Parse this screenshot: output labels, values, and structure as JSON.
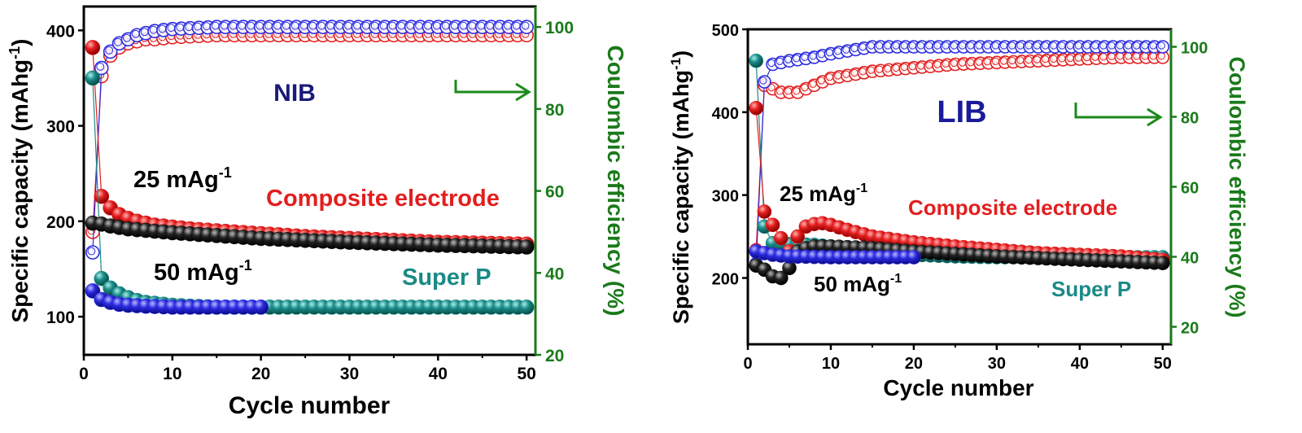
{
  "colors": {
    "axis": "#000000",
    "right_axis": "#1a7a1a",
    "composite": "#e31e1e",
    "superp": "#1a8a86",
    "black": "#111111",
    "blue": "#2a2ae0",
    "label_nib": "#1a1a7a",
    "label_lib": "#1a1a9a",
    "composite_label": "#e31e1e",
    "superp_label": "#1a8a86"
  },
  "chart_data": [
    {
      "id": "left",
      "type": "scatter",
      "xlabel": "Cycle number",
      "ylabel": "Specific capacity (mAhg",
      "ylabel_sup": "-1",
      "ylabel_end": ")",
      "y2label": "Coulombic efficiency (%)",
      "xlim": [
        0,
        51
      ],
      "ylim": [
        60,
        425
      ],
      "y2lim": [
        20,
        105
      ],
      "x_ticks": [
        0,
        10,
        20,
        30,
        40,
        50
      ],
      "y_ticks": [
        100,
        200,
        300,
        400
      ],
      "y2_ticks": [
        20,
        40,
        60,
        80,
        100
      ],
      "grid": false,
      "labels": {
        "system": "NIB",
        "rate_25": "25 mAg",
        "rate_50": "50 mAg",
        "rate_sup": "-1",
        "composite": "Composite electrode",
        "superp": "Super P"
      },
      "arrow": true,
      "series": [
        {
          "key": "composite_cap",
          "kind": "filled",
          "color": "composite",
          "axis": "left",
          "points": [
            [
              1,
              382
            ],
            [
              2,
              226
            ],
            [
              3,
              214
            ],
            [
              4,
              207
            ],
            [
              5,
              203
            ],
            [
              6,
              200
            ],
            [
              7,
              198
            ],
            [
              8,
              196
            ],
            [
              9,
              195
            ],
            [
              10,
              194
            ],
            [
              12,
              192
            ],
            [
              15,
              190
            ],
            [
              20,
              187
            ],
            [
              25,
              184
            ],
            [
              30,
              182
            ],
            [
              35,
              180
            ],
            [
              40,
              178
            ],
            [
              45,
              177
            ],
            [
              50,
              176
            ]
          ]
        },
        {
          "key": "composite_ce",
          "kind": "open",
          "color": "composite",
          "axis": "right",
          "points": [
            [
              1,
              50
            ],
            [
              2,
              88
            ],
            [
              3,
              93
            ],
            [
              4,
              95
            ],
            [
              5,
              96
            ],
            [
              6,
              96.5
            ],
            [
              7,
              97
            ],
            [
              8,
              97
            ],
            [
              10,
              97.5
            ],
            [
              15,
              98
            ],
            [
              20,
              98
            ],
            [
              30,
              98
            ],
            [
              40,
              98
            ],
            [
              50,
              98
            ]
          ]
        },
        {
          "key": "superp_cap",
          "kind": "filled",
          "color": "superp",
          "axis": "left",
          "points": [
            [
              1,
              350
            ],
            [
              2,
              140
            ],
            [
              3,
              130
            ],
            [
              4,
              124
            ],
            [
              5,
              120
            ],
            [
              6,
              117
            ],
            [
              7,
              115
            ],
            [
              8,
              114
            ],
            [
              9,
              113
            ],
            [
              10,
              112
            ],
            [
              12,
              111
            ],
            [
              15,
              110
            ],
            [
              20,
              110
            ],
            [
              30,
              110
            ],
            [
              40,
              110
            ],
            [
              50,
              110
            ]
          ]
        },
        {
          "key": "black_cap",
          "kind": "filled",
          "color": "black",
          "axis": "left",
          "points": [
            [
              1,
              198
            ],
            [
              2,
              197
            ],
            [
              3,
              195
            ],
            [
              5,
              192
            ],
            [
              10,
              188
            ],
            [
              15,
              185
            ],
            [
              20,
              182
            ],
            [
              30,
              178
            ],
            [
              40,
              175
            ],
            [
              50,
              173
            ]
          ]
        },
        {
          "key": "blue_cap",
          "kind": "filled",
          "color": "blue",
          "axis": "left",
          "points": [
            [
              1,
              127
            ],
            [
              2,
              118
            ],
            [
              3,
              115
            ],
            [
              4,
              113
            ],
            [
              5,
              112
            ],
            [
              7,
              111
            ],
            [
              10,
              110
            ],
            [
              15,
              110
            ],
            [
              20,
              110
            ]
          ]
        },
        {
          "key": "blue_ce",
          "kind": "open",
          "color": "blue",
          "axis": "right",
          "points": [
            [
              1,
              45
            ],
            [
              2,
              90
            ],
            [
              3,
              94
            ],
            [
              4,
              96
            ],
            [
              5,
              97
            ],
            [
              6,
              98
            ],
            [
              7,
              98.5
            ],
            [
              8,
              99
            ],
            [
              10,
              99.5
            ],
            [
              15,
              100
            ],
            [
              20,
              100
            ],
            [
              30,
              100
            ],
            [
              40,
              100
            ],
            [
              50,
              100
            ]
          ]
        }
      ]
    },
    {
      "id": "right",
      "type": "scatter",
      "xlabel": "Cycle number",
      "ylabel": "Specific capacity (mAhg",
      "ylabel_sup": "-1",
      "ylabel_end": ")",
      "y2label": "Coulombic efficiency (%)",
      "xlim": [
        0,
        51
      ],
      "ylim": [
        120,
        500
      ],
      "y2lim": [
        15,
        105
      ],
      "x_ticks": [
        0,
        10,
        20,
        30,
        40,
        50
      ],
      "y_ticks": [
        200,
        300,
        400,
        500
      ],
      "y2_ticks": [
        20,
        40,
        60,
        80,
        100
      ],
      "grid": false,
      "labels": {
        "system": "LIB",
        "rate_25": "25 mAg",
        "rate_50": "50 mAg",
        "rate_sup": "-1",
        "composite": "Composite electrode",
        "superp": "Super P"
      },
      "arrow": true,
      "series": [
        {
          "key": "superp_cap",
          "kind": "filled",
          "color": "superp",
          "axis": "left",
          "points": [
            [
              1,
              462
            ],
            [
              2,
              262
            ],
            [
              3,
              242
            ],
            [
              5,
              241
            ],
            [
              8,
              240
            ],
            [
              10,
              238
            ],
            [
              15,
              232
            ],
            [
              20,
              228
            ],
            [
              25,
              226
            ],
            [
              30,
              225
            ],
            [
              40,
              225
            ],
            [
              50,
              225
            ]
          ]
        },
        {
          "key": "composite_cap",
          "kind": "filled",
          "color": "composite",
          "axis": "left",
          "points": [
            [
              1,
              405
            ],
            [
              2,
              280
            ],
            [
              5,
              232
            ],
            [
              6,
              250
            ],
            [
              7,
              262
            ],
            [
              8,
              265
            ],
            [
              9,
              266
            ],
            [
              10,
              264
            ],
            [
              12,
              258
            ],
            [
              15,
              250
            ],
            [
              20,
              243
            ],
            [
              25,
              238
            ],
            [
              30,
              234
            ],
            [
              35,
              230
            ],
            [
              40,
              228
            ],
            [
              45,
              226
            ],
            [
              50,
              222
            ]
          ]
        },
        {
          "key": "black_cap",
          "kind": "filled",
          "color": "black",
          "axis": "left",
          "points": [
            [
              1,
              215
            ],
            [
              2,
              210
            ],
            [
              3,
              202
            ],
            [
              4,
              200
            ],
            [
              5,
              212
            ],
            [
              6,
              232
            ],
            [
              7,
              236
            ],
            [
              8,
              238
            ],
            [
              10,
              238
            ],
            [
              15,
              236
            ],
            [
              20,
              232
            ],
            [
              30,
              226
            ],
            [
              40,
              222
            ],
            [
              50,
              218
            ]
          ]
        },
        {
          "key": "blue_cap",
          "kind": "filled",
          "color": "blue",
          "axis": "left",
          "points": [
            [
              1,
              232
            ],
            [
              2,
              230
            ],
            [
              3,
              228
            ],
            [
              5,
              226
            ],
            [
              10,
              225
            ],
            [
              15,
              225
            ],
            [
              20,
              225
            ]
          ]
        },
        {
          "key": "composite_ce",
          "kind": "open",
          "color": "composite",
          "axis": "right",
          "points": [
            [
              1,
              42
            ],
            [
              2,
              89
            ],
            [
              3,
              88
            ],
            [
              4,
              87
            ],
            [
              5,
              87
            ],
            [
              6,
              87
            ],
            [
              7,
              88
            ],
            [
              8,
              89
            ],
            [
              10,
              91
            ],
            [
              15,
              93
            ],
            [
              20,
              94
            ],
            [
              25,
              95
            ],
            [
              30,
              95.5
            ],
            [
              35,
              96
            ],
            [
              40,
              96.5
            ],
            [
              45,
              97
            ],
            [
              50,
              97
            ]
          ]
        },
        {
          "key": "blue_ce",
          "kind": "open",
          "color": "blue",
          "axis": "right",
          "points": [
            [
              1,
              38
            ],
            [
              2,
              90
            ],
            [
              3,
              95
            ],
            [
              5,
              96
            ],
            [
              8,
              97
            ],
            [
              10,
              98
            ],
            [
              15,
              100
            ],
            [
              20,
              100
            ],
            [
              30,
              100
            ],
            [
              40,
              100
            ],
            [
              50,
              100
            ]
          ]
        }
      ]
    }
  ]
}
